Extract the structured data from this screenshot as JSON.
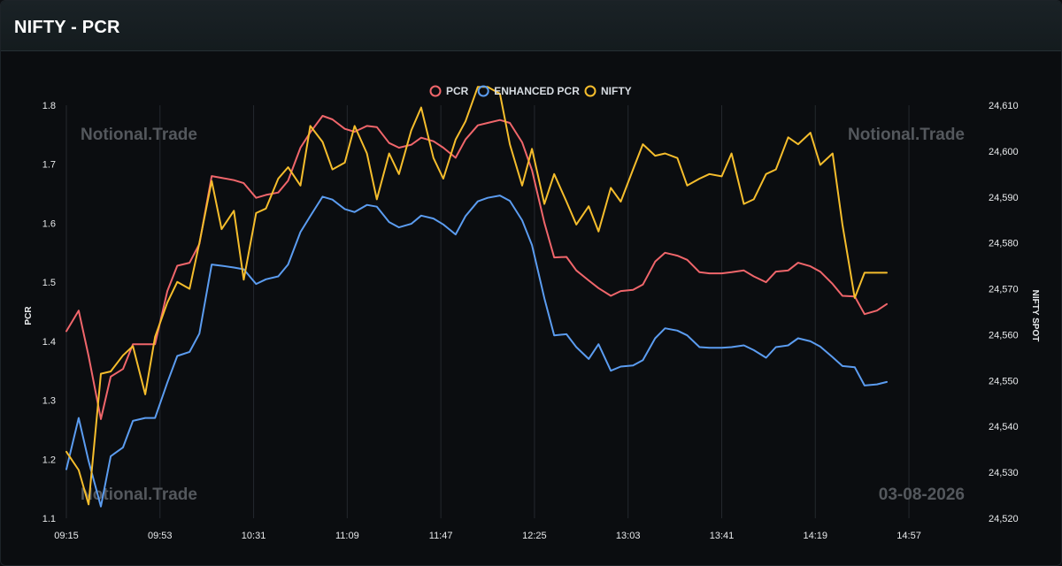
{
  "header": {
    "title": "NIFTY - PCR"
  },
  "watermarks": {
    "brand": "Notional.Trade",
    "date": "03-08-2026"
  },
  "colors": {
    "pcr": "#f0666b",
    "enhanced": "#5b9cf0",
    "nifty": "#f5bd2c",
    "grid": "#24292e"
  },
  "chart_data": {
    "type": "line",
    "legend_position": "top-center",
    "grid": true,
    "x_ticks": [
      "09:15",
      "09:53",
      "10:31",
      "11:09",
      "11:47",
      "12:25",
      "13:03",
      "13:41",
      "14:19",
      "14:57"
    ],
    "x_range": [
      "09:15",
      "15:25"
    ],
    "y_left": {
      "label": "PCR",
      "ticks": [
        "1.1",
        "1.2",
        "1.3",
        "1.4",
        "1.5",
        "1.6",
        "1.7",
        "1.8"
      ],
      "range": [
        1.1,
        1.8
      ]
    },
    "y_right": {
      "label": "NIFTY SPOT",
      "ticks": [
        "24,520",
        "24,530",
        "24,540",
        "24,550",
        "24,560",
        "24,570",
        "24,580",
        "24,590",
        "24,600",
        "24,610"
      ],
      "range": [
        24520,
        24610
      ]
    },
    "series": [
      {
        "name": "PCR",
        "axis": "left",
        "color": "#f0666b",
        "points": [
          [
            "09:15",
            1.417
          ],
          [
            "09:20",
            1.452
          ],
          [
            "09:24",
            1.375
          ],
          [
            "09:29",
            1.268
          ],
          [
            "09:33",
            1.34
          ],
          [
            "09:38",
            1.353
          ],
          [
            "09:42",
            1.395
          ],
          [
            "09:47",
            1.395
          ],
          [
            "09:51",
            1.395
          ],
          [
            "09:56",
            1.485
          ],
          [
            "10:00",
            1.528
          ],
          [
            "10:05",
            1.533
          ],
          [
            "10:09",
            1.565
          ],
          [
            "10:14",
            1.68
          ],
          [
            "10:18",
            1.677
          ],
          [
            "10:23",
            1.673
          ],
          [
            "10:27",
            1.668
          ],
          [
            "10:32",
            1.643
          ],
          [
            "10:36",
            1.648
          ],
          [
            "10:41",
            1.652
          ],
          [
            "10:45",
            1.672
          ],
          [
            "10:50",
            1.728
          ],
          [
            "10:54",
            1.754
          ],
          [
            "10:59",
            1.782
          ],
          [
            "11:03",
            1.776
          ],
          [
            "11:08",
            1.76
          ],
          [
            "11:12",
            1.755
          ],
          [
            "11:17",
            1.765
          ],
          [
            "11:21",
            1.763
          ],
          [
            "11:26",
            1.736
          ],
          [
            "11:30",
            1.728
          ],
          [
            "11:35",
            1.733
          ],
          [
            "11:39",
            1.745
          ],
          [
            "11:44",
            1.739
          ],
          [
            "11:48",
            1.728
          ],
          [
            "11:53",
            1.711
          ],
          [
            "11:57",
            1.742
          ],
          [
            "12:02",
            1.766
          ],
          [
            "12:06",
            1.77
          ],
          [
            "12:11",
            1.775
          ],
          [
            "12:15",
            1.77
          ],
          [
            "12:20",
            1.737
          ],
          [
            "12:24",
            1.69
          ],
          [
            "12:29",
            1.601
          ],
          [
            "12:33",
            1.542
          ],
          [
            "12:38",
            1.543
          ],
          [
            "12:42",
            1.52
          ],
          [
            "12:47",
            1.503
          ],
          [
            "12:51",
            1.49
          ],
          [
            "12:56",
            1.477
          ],
          [
            "13:00",
            1.485
          ],
          [
            "13:05",
            1.487
          ],
          [
            "13:09",
            1.496
          ],
          [
            "13:14",
            1.535
          ],
          [
            "13:18",
            1.55
          ],
          [
            "13:23",
            1.545
          ],
          [
            "13:27",
            1.538
          ],
          [
            "13:32",
            1.517
          ],
          [
            "13:36",
            1.515
          ],
          [
            "13:41",
            1.515
          ],
          [
            "13:45",
            1.517
          ],
          [
            "13:50",
            1.52
          ],
          [
            "13:54",
            1.51
          ],
          [
            "13:59",
            1.5
          ],
          [
            "14:03",
            1.518
          ],
          [
            "14:08",
            1.52
          ],
          [
            "14:12",
            1.533
          ],
          [
            "14:17",
            1.527
          ],
          [
            "14:21",
            1.518
          ],
          [
            "14:26",
            1.497
          ],
          [
            "14:30",
            1.477
          ],
          [
            "14:35",
            1.476
          ],
          [
            "14:39",
            1.446
          ],
          [
            "14:44",
            1.452
          ],
          [
            "14:48",
            1.463
          ]
        ]
      },
      {
        "name": "ENHANCED PCR",
        "axis": "left",
        "color": "#5b9cf0",
        "points": [
          [
            "09:15",
            1.183
          ],
          [
            "09:20",
            1.27
          ],
          [
            "09:24",
            1.197
          ],
          [
            "09:29",
            1.12
          ],
          [
            "09:33",
            1.205
          ],
          [
            "09:38",
            1.22
          ],
          [
            "09:42",
            1.265
          ],
          [
            "09:47",
            1.27
          ],
          [
            "09:51",
            1.27
          ],
          [
            "09:56",
            1.33
          ],
          [
            "10:00",
            1.375
          ],
          [
            "10:05",
            1.382
          ],
          [
            "10:09",
            1.413
          ],
          [
            "10:14",
            1.53
          ],
          [
            "10:18",
            1.528
          ],
          [
            "10:23",
            1.525
          ],
          [
            "10:27",
            1.522
          ],
          [
            "10:32",
            1.497
          ],
          [
            "10:36",
            1.505
          ],
          [
            "10:41",
            1.51
          ],
          [
            "10:45",
            1.53
          ],
          [
            "10:50",
            1.585
          ],
          [
            "10:54",
            1.612
          ],
          [
            "10:59",
            1.645
          ],
          [
            "11:03",
            1.64
          ],
          [
            "11:08",
            1.624
          ],
          [
            "11:12",
            1.619
          ],
          [
            "11:17",
            1.631
          ],
          [
            "11:21",
            1.628
          ],
          [
            "11:26",
            1.602
          ],
          [
            "11:30",
            1.593
          ],
          [
            "11:35",
            1.599
          ],
          [
            "11:39",
            1.613
          ],
          [
            "11:44",
            1.608
          ],
          [
            "11:48",
            1.598
          ],
          [
            "11:53",
            1.581
          ],
          [
            "11:57",
            1.612
          ],
          [
            "12:02",
            1.637
          ],
          [
            "12:06",
            1.643
          ],
          [
            "12:11",
            1.647
          ],
          [
            "12:15",
            1.638
          ],
          [
            "12:20",
            1.605
          ],
          [
            "12:24",
            1.563
          ],
          [
            "12:29",
            1.473
          ],
          [
            "12:33",
            1.41
          ],
          [
            "12:38",
            1.412
          ],
          [
            "12:42",
            1.39
          ],
          [
            "12:47",
            1.37
          ],
          [
            "12:51",
            1.395
          ],
          [
            "12:56",
            1.35
          ],
          [
            "13:00",
            1.357
          ],
          [
            "13:05",
            1.359
          ],
          [
            "13:09",
            1.368
          ],
          [
            "13:14",
            1.405
          ],
          [
            "13:18",
            1.422
          ],
          [
            "13:23",
            1.418
          ],
          [
            "13:27",
            1.41
          ],
          [
            "13:32",
            1.39
          ],
          [
            "13:36",
            1.389
          ],
          [
            "13:41",
            1.389
          ],
          [
            "13:45",
            1.39
          ],
          [
            "13:50",
            1.393
          ],
          [
            "13:54",
            1.385
          ],
          [
            "13:59",
            1.372
          ],
          [
            "14:03",
            1.39
          ],
          [
            "14:08",
            1.393
          ],
          [
            "14:12",
            1.405
          ],
          [
            "14:17",
            1.4
          ],
          [
            "14:21",
            1.391
          ],
          [
            "14:26",
            1.373
          ],
          [
            "14:30",
            1.358
          ],
          [
            "14:35",
            1.356
          ],
          [
            "14:39",
            1.325
          ],
          [
            "14:44",
            1.327
          ],
          [
            "14:48",
            1.331
          ]
        ]
      },
      {
        "name": "NIFTY",
        "axis": "right",
        "color": "#f5bd2c",
        "points": [
          [
            "09:15",
            24534.5
          ],
          [
            "09:20",
            24530.5
          ],
          [
            "09:24",
            24523
          ],
          [
            "09:29",
            24551.5
          ],
          [
            "09:33",
            24552
          ],
          [
            "09:38",
            24555.5
          ],
          [
            "09:42",
            24557.5
          ],
          [
            "09:47",
            24547
          ],
          [
            "09:51",
            24559.5
          ],
          [
            "09:56",
            24567
          ],
          [
            "10:00",
            24571.5
          ],
          [
            "10:05",
            24570
          ],
          [
            "10:09",
            24580
          ],
          [
            "10:14",
            24593.5
          ],
          [
            "10:18",
            24583
          ],
          [
            "10:23",
            24587
          ],
          [
            "10:27",
            24572
          ],
          [
            "10:32",
            24586.5
          ],
          [
            "10:36",
            24587.5
          ],
          [
            "10:41",
            24594
          ],
          [
            "10:45",
            24596.5
          ],
          [
            "10:50",
            24592.5
          ],
          [
            "10:54",
            24605.5
          ],
          [
            "10:59",
            24602
          ],
          [
            "11:03",
            24596
          ],
          [
            "11:08",
            24597.5
          ],
          [
            "11:12",
            24605.5
          ],
          [
            "11:17",
            24599.5
          ],
          [
            "11:21",
            24589.5
          ],
          [
            "11:26",
            24599.5
          ],
          [
            "11:30",
            24595
          ],
          [
            "11:35",
            24604.5
          ],
          [
            "11:39",
            24609.5
          ],
          [
            "11:44",
            24598.5
          ],
          [
            "11:48",
            24594
          ],
          [
            "11:53",
            24602.5
          ],
          [
            "11:57",
            24606.5
          ],
          [
            "12:02",
            24614
          ],
          [
            "12:06",
            24614
          ],
          [
            "12:11",
            24612.5
          ],
          [
            "12:15",
            24601.5
          ],
          [
            "12:20",
            24592.5
          ],
          [
            "12:24",
            24600.5
          ],
          [
            "12:29",
            24588.5
          ],
          [
            "12:33",
            24595
          ],
          [
            "12:38",
            24589
          ],
          [
            "12:42",
            24584
          ],
          [
            "12:47",
            24588
          ],
          [
            "12:51",
            24582.5
          ],
          [
            "12:56",
            24592
          ],
          [
            "13:00",
            24589
          ],
          [
            "13:05",
            24596
          ],
          [
            "13:09",
            24601.5
          ],
          [
            "13:14",
            24599
          ],
          [
            "13:18",
            24599.5
          ],
          [
            "13:23",
            24598.5
          ],
          [
            "13:27",
            24592.5
          ],
          [
            "13:32",
            24594
          ],
          [
            "13:36",
            24595
          ],
          [
            "13:41",
            24594.5
          ],
          [
            "13:45",
            24599.5
          ],
          [
            "13:50",
            24588.5
          ],
          [
            "13:54",
            24589.5
          ],
          [
            "13:59",
            24595
          ],
          [
            "14:03",
            24596
          ],
          [
            "14:08",
            24603
          ],
          [
            "14:12",
            24601.5
          ],
          [
            "14:17",
            24604
          ],
          [
            "14:21",
            24597
          ],
          [
            "14:26",
            24599.5
          ],
          [
            "14:30",
            24584
          ],
          [
            "14:35",
            24568
          ],
          [
            "14:39",
            24573.5
          ],
          [
            "14:44",
            24573.5
          ],
          [
            "14:48",
            24573.5
          ]
        ]
      }
    ]
  }
}
